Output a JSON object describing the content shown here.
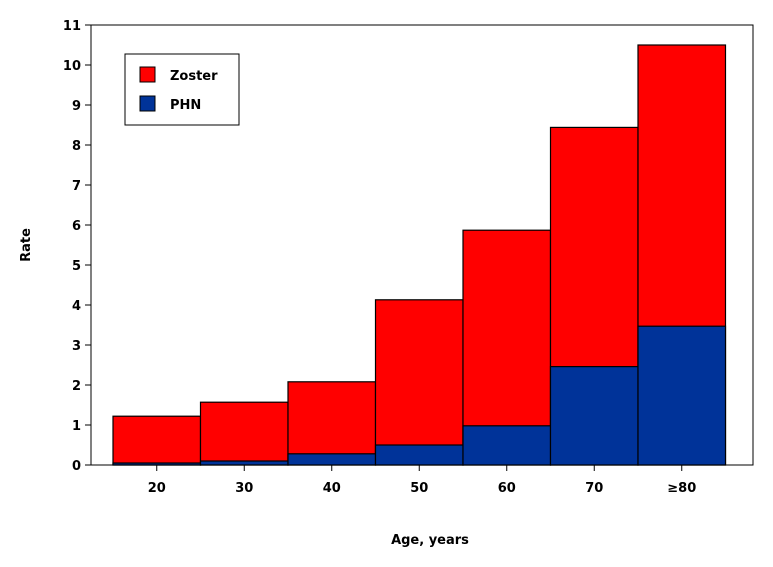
{
  "chart_data": {
    "type": "bar",
    "stacked": false,
    "overlay": true,
    "categories": [
      "20",
      "30",
      "40",
      "50",
      "60",
      "70",
      "≥80"
    ],
    "series": [
      {
        "name": "Zoster",
        "color": "#ff0000",
        "values": [
          1.22,
          1.57,
          2.08,
          4.13,
          5.87,
          8.44,
          10.5
        ]
      },
      {
        "name": "PHN",
        "color": "#003399",
        "values": [
          0.05,
          0.1,
          0.28,
          0.5,
          0.98,
          2.46,
          3.47
        ]
      }
    ],
    "xlabel": "Age, years",
    "ylabel": "Rate",
    "ylim": [
      0,
      11
    ],
    "yticks": [
      "0",
      "1",
      "2",
      "3",
      "4",
      "5",
      "6",
      "7",
      "8",
      "9",
      "10",
      "11"
    ],
    "legend_position": "top-left",
    "grid": false
  }
}
